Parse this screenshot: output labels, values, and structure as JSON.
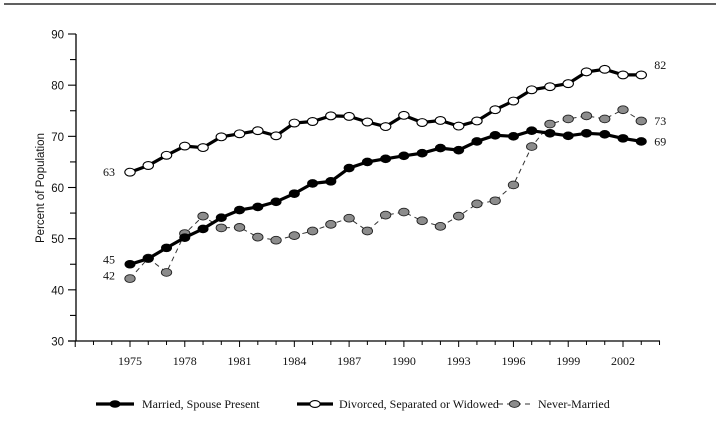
{
  "chart_data": {
    "type": "line",
    "title": "",
    "xlabel": "",
    "ylabel": "Percent of Population",
    "ylim": [
      30,
      90
    ],
    "xlim": [
      1972,
      2004
    ],
    "yticks": [
      30,
      40,
      50,
      60,
      70,
      80,
      90
    ],
    "xtick_labels": [
      "1975",
      "1978",
      "1981",
      "1984",
      "1987",
      "1990",
      "1993",
      "1996",
      "1999",
      "2002"
    ],
    "grid": false,
    "legend_position": "bottom",
    "x": [
      1975,
      1976,
      1977,
      1978,
      1979,
      1980,
      1981,
      1982,
      1983,
      1984,
      1985,
      1986,
      1987,
      1988,
      1989,
      1990,
      1991,
      1992,
      1993,
      1994,
      1995,
      1996,
      1997,
      1998,
      1999,
      2000,
      2001,
      2002,
      2003
    ],
    "series": [
      {
        "name": "Married, Spouse Present",
        "style": "solid-filled-black",
        "start_label": "45",
        "end_label": "69",
        "values": [
          45,
          46.1,
          48.2,
          50.2,
          51.9,
          54.1,
          55.6,
          56.2,
          57.2,
          58.8,
          60.8,
          61.2,
          63.8,
          65,
          65.6,
          66.2,
          66.7,
          67.7,
          67.3,
          69,
          70.2,
          70,
          71.1,
          70.6,
          70.1,
          70.6,
          70.4,
          69.6,
          69
        ]
      },
      {
        "name": "Divorced, Separated or Widowed",
        "style": "solid-open-white",
        "start_label": "63",
        "end_label": "82",
        "values": [
          63,
          64.3,
          66.3,
          68.1,
          67.8,
          69.9,
          70.5,
          71.1,
          70.1,
          72.6,
          72.9,
          74,
          73.9,
          72.8,
          71.9,
          74.1,
          72.7,
          73.1,
          72,
          73,
          75.2,
          76.9,
          79.1,
          79.7,
          80.3,
          82.6,
          83.1,
          82,
          82
        ]
      },
      {
        "name": "Never-Married",
        "style": "dashed-gray",
        "start_label": "42",
        "end_label": "73",
        "values": [
          42.2,
          46.2,
          43.4,
          51,
          54.4,
          52.1,
          52.2,
          50.3,
          49.7,
          50.6,
          51.5,
          52.8,
          54,
          51.5,
          54.6,
          55.2,
          53.5,
          52.4,
          54.4,
          56.8,
          57.4,
          60.5,
          68,
          72.4,
          73.4,
          74,
          73.4,
          75.2,
          73
        ]
      }
    ],
    "colors": {
      "married": "#000000",
      "divorced_fill": "#ffffff",
      "never_married_fill": "#8c8c8c",
      "axis": "#000000"
    }
  }
}
